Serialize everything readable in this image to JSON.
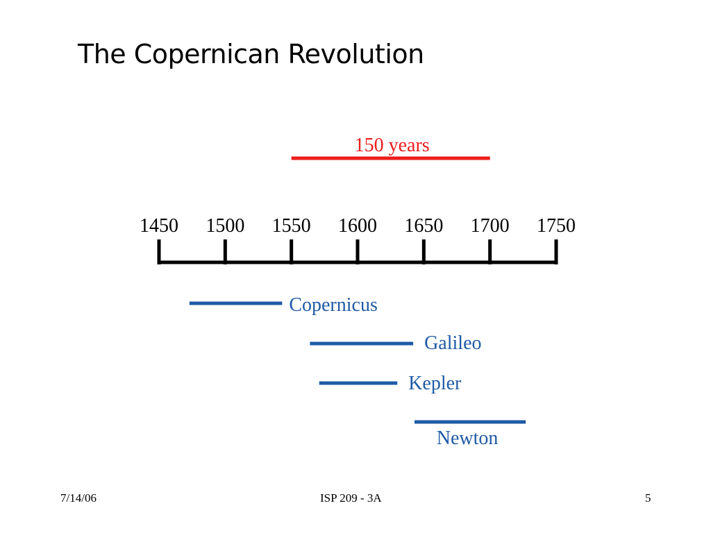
{
  "title": "The Copernican Revolution",
  "timeline": {
    "ticks": [
      "1450",
      "1500",
      "1550",
      "1600",
      "1650",
      "1700",
      "1750"
    ],
    "span_marker": {
      "label": "150 years",
      "start": 1550,
      "end": 1700,
      "color": "#ee1c1c"
    },
    "people": [
      {
        "label": "Copernicus",
        "start": 1473,
        "end": 1543
      },
      {
        "label": "Galileo",
        "start": 1564,
        "end": 1642
      },
      {
        "label": "Kepler",
        "start": 1571,
        "end": 1630
      },
      {
        "label": "Newton",
        "start": 1643,
        "end": 1727
      }
    ],
    "person_color": "#1f5aa6",
    "axis_color": "#000000"
  },
  "footer": {
    "date": "7/14/06",
    "course": "ISP 209 - 3A",
    "page": "5"
  }
}
